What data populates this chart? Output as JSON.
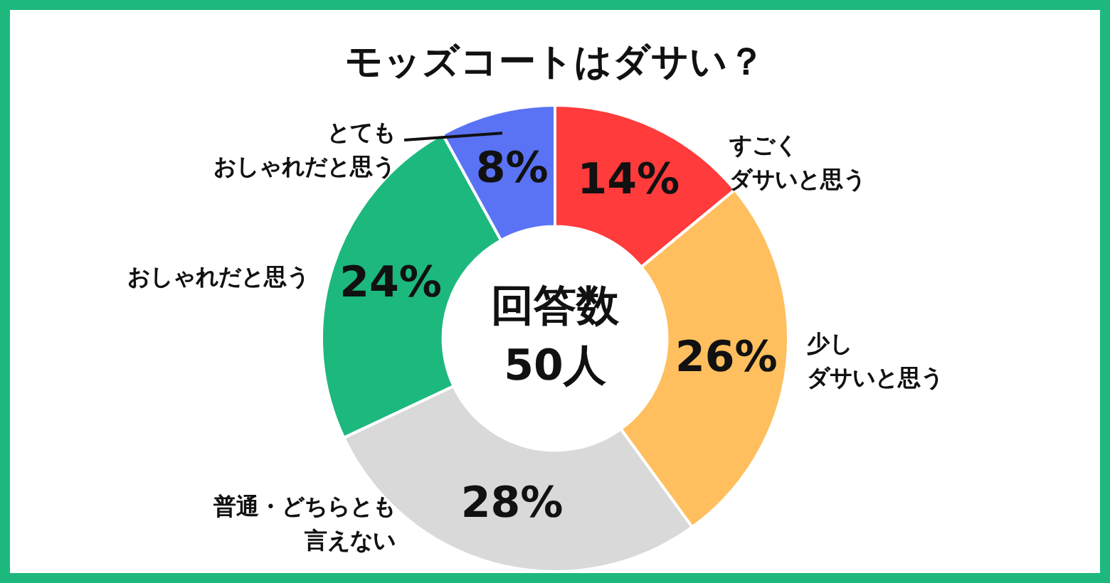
{
  "chart_data": {
    "type": "donut",
    "title": "モッズコートはダサい？",
    "categories": [
      "すごくダサいと思う",
      "少しダサいと思う",
      "普通・どちらとも言えない",
      "おしゃれだと思う",
      "とてもおしゃれだと思う"
    ],
    "values": [
      14,
      26,
      28,
      24,
      8
    ],
    "value_labels": [
      "14%",
      "26%",
      "28%",
      "24%",
      "8%"
    ],
    "colors": [
      "#ff3b3b",
      "#ffbf5e",
      "#d9d9d9",
      "#1db87e",
      "#5a73f5"
    ],
    "annotations": [
      "回答数\n50人"
    ],
    "legend": false
  }
}
